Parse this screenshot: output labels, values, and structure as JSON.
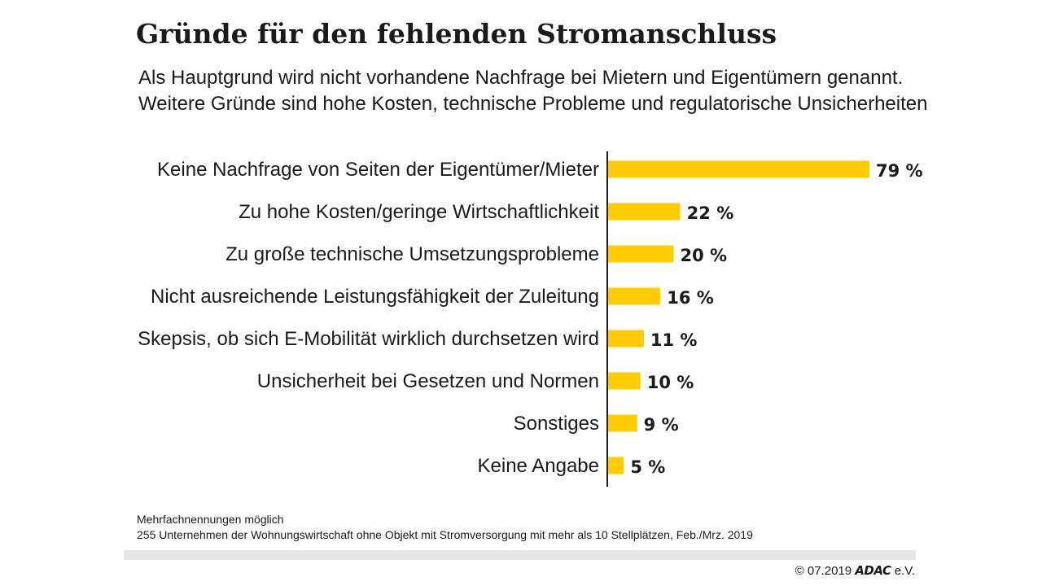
{
  "header": {
    "title": "Gründe für den fehlenden Stromanschluss",
    "subtitle_line1": "Als Hauptgrund wird nicht vorhandene Nachfrage bei Mietern und Eigentümern genannt.",
    "subtitle_line2": "Weitere Gründe sind hohe Kosten, technische Probleme und regulatorische Unsicherheiten"
  },
  "chart_data": {
    "type": "bar",
    "orientation": "horizontal",
    "title": "Gründe für den fehlenden Stromanschluss",
    "categories": [
      "Keine Nachfrage von Seiten der Eigentümer/Mieter",
      "Zu hohe Kosten/geringe Wirtschaftlichkeit",
      "Zu große technische Umsetzungsprobleme",
      "Nicht ausreichende Leistungsfähigkeit der Zuleitung",
      "Skepsis, ob sich E-Mobilität wirklich durchsetzen wird",
      "Unsicherheit bei Gesetzen und Normen",
      "Sonstiges",
      "Keine Angabe"
    ],
    "values": [
      79,
      22,
      20,
      16,
      11,
      10,
      9,
      5
    ],
    "value_labels": [
      "79 %",
      "22 %",
      "20 %",
      "16 %",
      "11 %",
      "10 %",
      "9 %",
      "5 %"
    ],
    "unit": "%",
    "xlim": [
      0,
      100
    ],
    "grid": false,
    "legend": "none",
    "bar_color": "#ffcc00",
    "axis_color": "#1a1a1a"
  },
  "footer": {
    "note_line1": "Mehrfachnennungen möglich",
    "note_line2": "255 Unternehmen der Wohnungswirtschaft ohne Objekt mit Stromversorgung mit mehr als 10 Stellplätzen, Feb./Mrz. 2019",
    "copyright": "© 07.2019",
    "brand": "ADAC",
    "brand_suffix": "e.V."
  }
}
